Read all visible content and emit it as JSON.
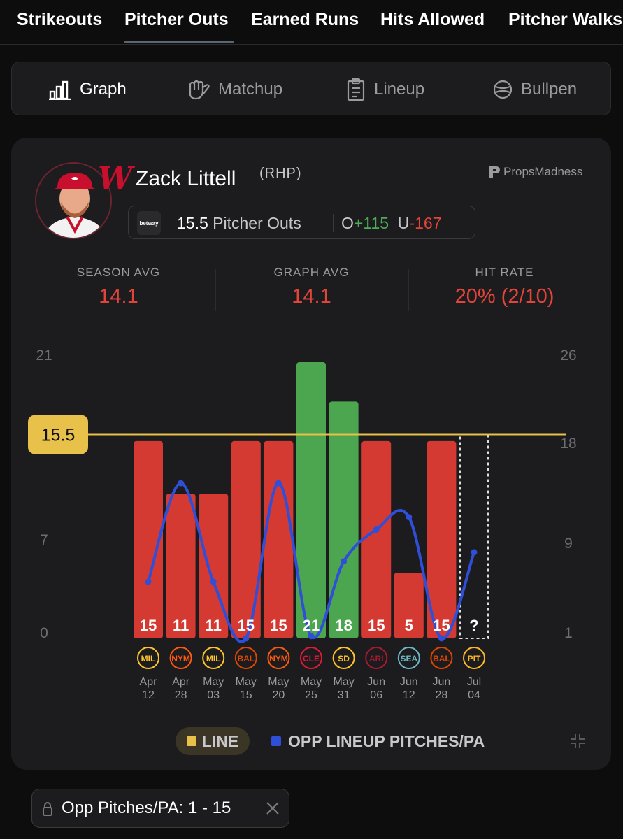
{
  "top_tabs": [
    {
      "label": "Strikeouts",
      "active": false
    },
    {
      "label": "Pitcher Outs",
      "active": true
    },
    {
      "label": "Earned Runs",
      "active": false
    },
    {
      "label": "Hits Allowed",
      "active": false
    },
    {
      "label": "Pitcher Walks",
      "active": false
    }
  ],
  "view_buttons": [
    {
      "label": "Graph",
      "icon": "bar-chart-icon",
      "active": true
    },
    {
      "label": "Matchup",
      "icon": "baseball-glove-icon",
      "active": false
    },
    {
      "label": "Lineup",
      "icon": "clipboard-icon",
      "active": false
    },
    {
      "label": "Bullpen",
      "icon": "baseball-icon",
      "active": false
    }
  ],
  "player": {
    "name": "Zack Littell",
    "hand": "(RHP)",
    "team_logo_letter": "W",
    "team_color": "#c8102e"
  },
  "brand": "PropsMadness",
  "prop": {
    "book": "betway",
    "line": "15.5",
    "market": "Pitcher Outs",
    "over_prefix": "O",
    "over_odds": "+115",
    "under_prefix": "U",
    "under_odds": "-167"
  },
  "stats": [
    {
      "label": "SEASON AVG",
      "value": "14.1"
    },
    {
      "label": "GRAPH AVG",
      "value": "14.1"
    },
    {
      "label": "HIT RATE",
      "value": "20% (2/10)"
    }
  ],
  "chart_data": {
    "type": "bar",
    "line_label": "15.5",
    "line_value": 15.5,
    "y_left_ticks": [
      "21",
      "7",
      "0"
    ],
    "y_left_range": [
      0,
      21
    ],
    "y_right_ticks": [
      "26",
      "18",
      "9",
      "1"
    ],
    "y_right_range": [
      1,
      26
    ],
    "games": [
      {
        "date_top": "Apr",
        "date_bottom": "12",
        "value": 15,
        "label": "15",
        "result": "under",
        "opp_pitches": 6.0,
        "team": "MIL"
      },
      {
        "date_top": "Apr",
        "date_bottom": "28",
        "value": 11,
        "label": "11",
        "result": "under",
        "opp_pitches": 14.7,
        "team": "NYM"
      },
      {
        "date_top": "May",
        "date_bottom": "03",
        "value": 11,
        "label": "11",
        "result": "under",
        "opp_pitches": 6.0,
        "team": "MIL"
      },
      {
        "date_top": "May",
        "date_bottom": "15",
        "value": 15,
        "label": "15",
        "result": "under",
        "opp_pitches": 1.0,
        "team": "BAL"
      },
      {
        "date_top": "May",
        "date_bottom": "20",
        "value": 15,
        "label": "15",
        "result": "under",
        "opp_pitches": 14.7,
        "team": "NYM"
      },
      {
        "date_top": "May",
        "date_bottom": "25",
        "value": 21,
        "label": "21",
        "result": "over",
        "opp_pitches": 1.2,
        "team": "CLE"
      },
      {
        "date_top": "May",
        "date_bottom": "31",
        "value": 18,
        "label": "18",
        "result": "over",
        "opp_pitches": 7.8,
        "team": "SD"
      },
      {
        "date_top": "Jun",
        "date_bottom": "06",
        "value": 15,
        "label": "15",
        "result": "under",
        "opp_pitches": 10.6,
        "team": "ARI"
      },
      {
        "date_top": "Jun",
        "date_bottom": "12",
        "value": 5,
        "label": "5",
        "result": "under",
        "opp_pitches": 11.7,
        "team": "SEA"
      },
      {
        "date_top": "Jun",
        "date_bottom": "28",
        "value": 15,
        "label": "15",
        "result": "under",
        "opp_pitches": 1.0,
        "team": "BAL"
      },
      {
        "date_top": "Jul",
        "date_bottom": "04",
        "value": null,
        "label": "?",
        "result": "upcoming",
        "opp_pitches": 8.6,
        "team": "PIT"
      }
    ],
    "colors": {
      "under": "#d43a32",
      "over": "#4ca54f",
      "line": "#e8c14a",
      "opp_series": "#2f4fd8"
    },
    "legend": [
      "LINE",
      "OPP LINEUP PITCHES/PA"
    ],
    "legend_placement": "bottom"
  },
  "filter_chip": {
    "label": "Opp Pitches/PA: 1 - 15"
  }
}
